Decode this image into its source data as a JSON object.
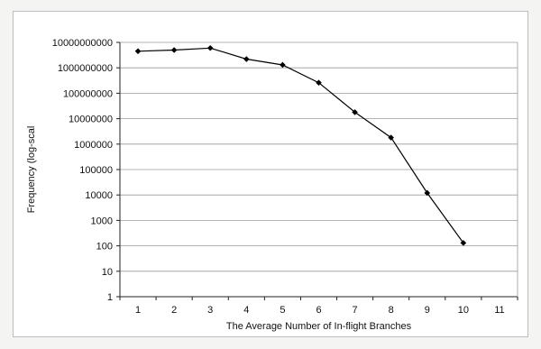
{
  "chart_data": {
    "type": "line",
    "title": "",
    "xlabel": "The Average Number of In-flight Branches",
    "ylabel": "Frequency  (log-scal",
    "yscale": "log",
    "ylim": [
      1,
      10000000000
    ],
    "xlim": [
      0.5,
      11.5
    ],
    "x_ticks": [
      "1",
      "2",
      "3",
      "4",
      "5",
      "6",
      "7",
      "8",
      "9",
      "10",
      "11"
    ],
    "y_ticks": [
      "10000000000",
      "1000000000",
      "100000000",
      "10000000",
      "1000000",
      "100000",
      "10000",
      "1000",
      "100",
      "10",
      "1"
    ],
    "grid": "horizontal",
    "legend": "none",
    "series": [
      {
        "x": [
          1,
          2,
          3,
          4,
          5,
          6,
          7,
          8,
          9,
          10
        ],
        "values": [
          4500000000,
          5000000000,
          6000000000,
          2200000000,
          1300000000,
          260000000,
          18000000,
          1800000,
          12000,
          130
        ],
        "color": "#000000",
        "marker": "diamond"
      }
    ]
  }
}
